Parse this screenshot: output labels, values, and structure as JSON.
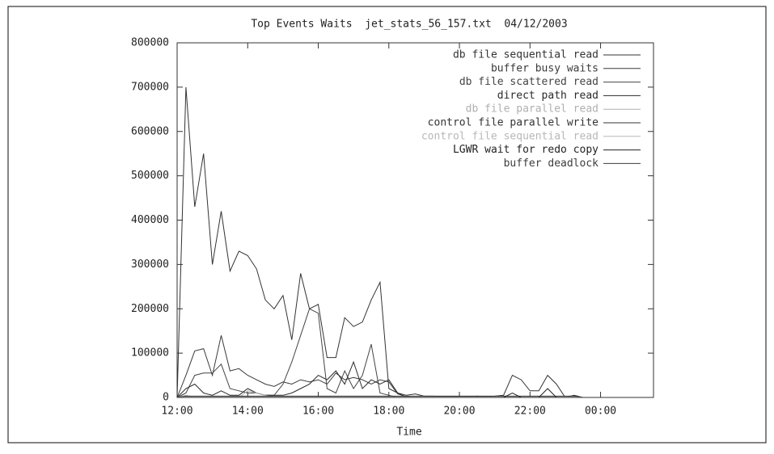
{
  "chart_data": {
    "type": "line",
    "title": "Top Events Waits  jet_stats_56_157.txt  04/12/2003",
    "xlabel": "Time",
    "legend": "top-right",
    "x": [
      12,
      12.25,
      12.5,
      12.75,
      13,
      13.25,
      13.5,
      13.75,
      14,
      14.25,
      14.5,
      14.75,
      15,
      15.25,
      15.5,
      15.75,
      16,
      16.25,
      16.5,
      16.75,
      17,
      17.25,
      17.5,
      17.75,
      18,
      18.25,
      18.5,
      18.75,
      19,
      19.25,
      19.5,
      19.75,
      20,
      20.25,
      20.5,
      20.75,
      21,
      21.25,
      21.5,
      21.75,
      22,
      22.25,
      22.5,
      22.75,
      23,
      23.25,
      23.5
    ],
    "xlim": [
      12,
      25.5
    ],
    "xticks": [
      {
        "value": 12,
        "label": "12:00"
      },
      {
        "value": 14,
        "label": "14:00"
      },
      {
        "value": 16,
        "label": "16:00"
      },
      {
        "value": 18,
        "label": "18:00"
      },
      {
        "value": 20,
        "label": "20:00"
      },
      {
        "value": 22,
        "label": "22:00"
      },
      {
        "value": 24,
        "label": "00:00"
      }
    ],
    "ylim": [
      0,
      800000
    ],
    "yticks": [
      0,
      100000,
      200000,
      300000,
      400000,
      500000,
      600000,
      700000,
      800000
    ],
    "series": [
      {
        "name": "db file sequential read",
        "color": "#333333",
        "values": [
          0,
          700000,
          430000,
          550000,
          300000,
          420000,
          285000,
          330000,
          320000,
          290000,
          220000,
          200000,
          230000,
          130000,
          280000,
          200000,
          210000,
          90000,
          90000,
          180000,
          160000,
          170000,
          220000,
          260000,
          20000,
          10000,
          5000,
          8000,
          3000,
          3000,
          2000,
          2000,
          2000,
          2000,
          3000,
          2000,
          3000,
          5000,
          50000,
          40000,
          15000,
          15000,
          50000,
          30000,
          0,
          5000,
          0
        ]
      },
      {
        "name": "buffer busy waits",
        "color": "#3a3a3a",
        "values": [
          0,
          50000,
          105000,
          110000,
          50000,
          140000,
          60000,
          65000,
          50000,
          40000,
          30000,
          25000,
          35000,
          30000,
          40000,
          35000,
          40000,
          30000,
          55000,
          40000,
          45000,
          40000,
          30000,
          40000,
          35000,
          8000,
          2000,
          0,
          0,
          0,
          0,
          0,
          0,
          0,
          0,
          0,
          0,
          0,
          0,
          0,
          0,
          0,
          0,
          0,
          0,
          0,
          0
        ]
      },
      {
        "name": "db file scattered read",
        "color": "#444444",
        "values": [
          0,
          10000,
          50000,
          55000,
          55000,
          75000,
          20000,
          15000,
          10000,
          10000,
          5000,
          5000,
          30000,
          80000,
          140000,
          200000,
          190000,
          20000,
          10000,
          60000,
          20000,
          50000,
          120000,
          10000,
          5000,
          0,
          0,
          0,
          0,
          0,
          0,
          0,
          0,
          0,
          0,
          0,
          0,
          0,
          0,
          0,
          0,
          0,
          0,
          0,
          0,
          0,
          0
        ]
      },
      {
        "name": "direct path read",
        "color": "#2a2a2a",
        "values": [
          0,
          20000,
          30000,
          10000,
          5000,
          15000,
          5000,
          5000,
          20000,
          10000,
          5000,
          5000,
          5000,
          10000,
          20000,
          30000,
          50000,
          40000,
          60000,
          30000,
          80000,
          20000,
          40000,
          30000,
          40000,
          10000,
          0,
          0,
          0,
          0,
          0,
          0,
          0,
          0,
          0,
          0,
          0,
          0,
          0,
          0,
          0,
          0,
          0,
          0,
          0,
          0,
          0
        ]
      },
      {
        "name": "db file parallel read",
        "color": "#b0b0b0",
        "values": [
          0,
          5000,
          0,
          0,
          0,
          0,
          0,
          0,
          15000,
          10000,
          5000,
          0,
          0,
          0,
          0,
          0,
          0,
          0,
          0,
          0,
          0,
          0,
          0,
          0,
          0,
          0,
          0,
          0,
          0,
          0,
          0,
          0,
          0,
          0,
          0,
          0,
          0,
          0,
          0,
          0,
          0,
          0,
          0,
          0,
          0,
          0,
          0
        ]
      },
      {
        "name": "control file parallel write",
        "color": "#333333",
        "values": [
          0,
          3000,
          3000,
          3000,
          3000,
          3000,
          3000,
          3000,
          3000,
          3000,
          3000,
          3000,
          3000,
          3000,
          3000,
          3000,
          3000,
          3000,
          3000,
          3000,
          3000,
          3000,
          3000,
          3000,
          3000,
          3000,
          3000,
          3000,
          3000,
          3000,
          3000,
          3000,
          3000,
          3000,
          3000,
          3000,
          3000,
          3000,
          3000,
          3000,
          3000,
          3000,
          3000,
          3000,
          3000,
          3000,
          0
        ]
      },
      {
        "name": "control file sequential read",
        "color": "#b8b8b8",
        "values": [
          0,
          1000,
          1000,
          1000,
          1000,
          1000,
          1000,
          1000,
          1000,
          1000,
          1000,
          1000,
          1000,
          1000,
          1000,
          1000,
          1000,
          1000,
          1000,
          1000,
          1000,
          1000,
          1000,
          1000,
          1000,
          1000,
          1000,
          1000,
          1000,
          1000,
          1000,
          1000,
          1000,
          1000,
          1000,
          1000,
          1000,
          1000,
          1000,
          1000,
          1000,
          1000,
          1000,
          1000,
          1000,
          1000,
          0
        ]
      },
      {
        "name": "LGWR wait for redo copy",
        "color": "#222222",
        "values": [
          0,
          0,
          0,
          0,
          0,
          0,
          0,
          0,
          0,
          0,
          0,
          0,
          0,
          0,
          0,
          0,
          0,
          0,
          0,
          0,
          0,
          0,
          0,
          0,
          0,
          0,
          0,
          0,
          0,
          0,
          0,
          0,
          0,
          0,
          0,
          0,
          0,
          0,
          10000,
          0,
          0,
          0,
          20000,
          0,
          0,
          0,
          0
        ]
      },
      {
        "name": "buffer deadlock",
        "color": "#3c3c3c",
        "values": [
          0,
          0,
          0,
          0,
          0,
          0,
          0,
          0,
          0,
          0,
          0,
          0,
          0,
          0,
          0,
          0,
          0,
          0,
          0,
          0,
          0,
          0,
          0,
          0,
          0,
          0,
          0,
          0,
          0,
          0,
          0,
          0,
          0,
          0,
          0,
          0,
          0,
          0,
          0,
          0,
          0,
          0,
          0,
          0,
          0,
          0,
          0
        ]
      }
    ]
  }
}
